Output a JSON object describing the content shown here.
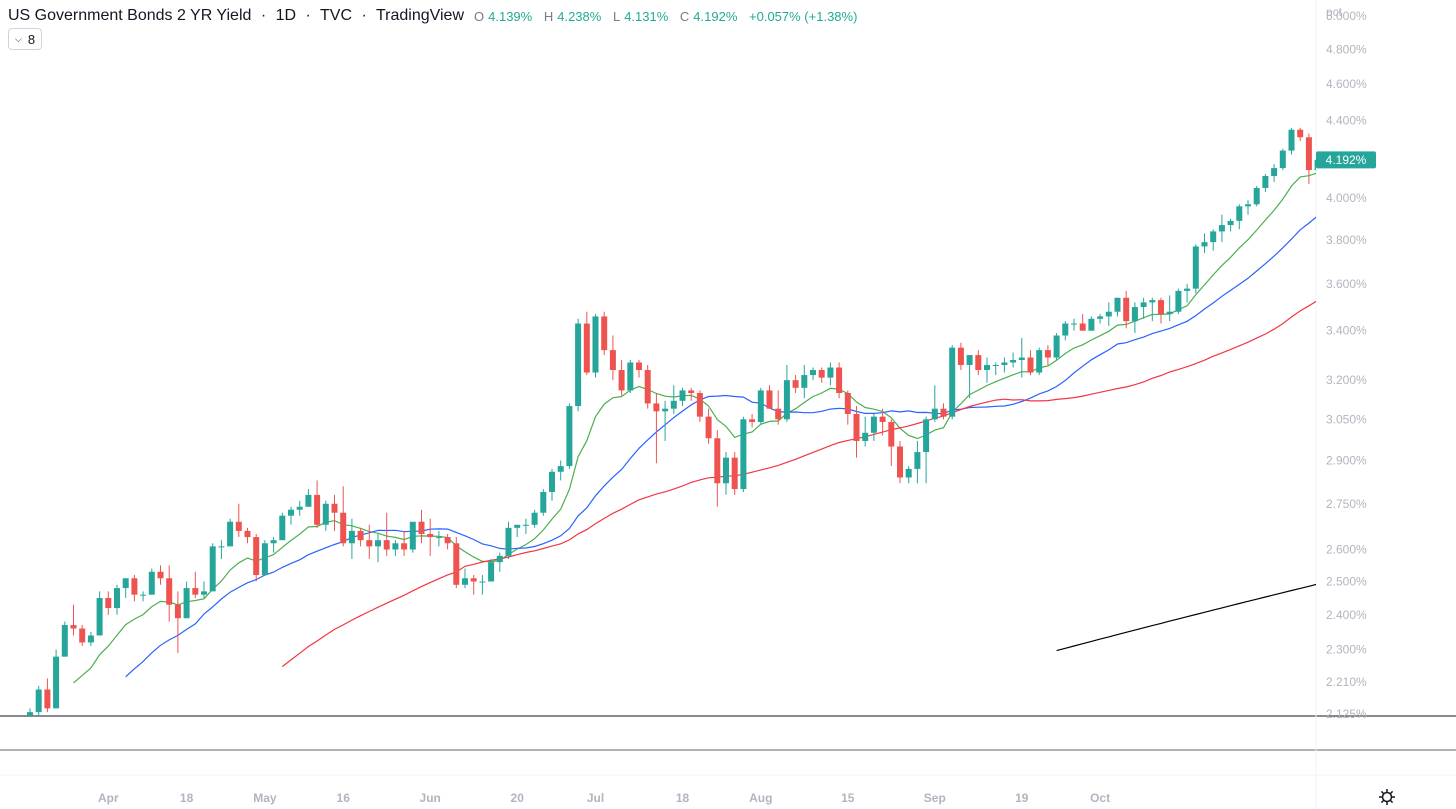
{
  "header": {
    "title": "US Government Bonds 2 YR Yield",
    "interval": "1D",
    "source": "TVC",
    "platform": "TradingView",
    "sep": "·",
    "open_label": "O",
    "open": "4.139%",
    "high_label": "H",
    "high": "4.238%",
    "low_label": "L",
    "low": "4.131%",
    "close_label": "C",
    "close": "4.192%",
    "change": "+0.057% (+1.38%)"
  },
  "indicator_button": {
    "label": "8"
  },
  "colors": {
    "up": "#26a69a",
    "down": "#ef5350",
    "ma_short": "#4caf50",
    "ma_mid": "#2962ff",
    "ma_long": "#f23645",
    "ma_longest": "#000000",
    "price_label_bg": "#26a69a"
  },
  "chart_data": {
    "type": "candlestick",
    "title": "US Government Bonds 2 YR Yield",
    "y_scale": "log",
    "ylim": [
      2.12,
      5.05
    ],
    "y_unit_label": "pct",
    "y_ticks": [
      "5.000%",
      "4.800%",
      "4.600%",
      "4.400%",
      "4.000%",
      "3.800%",
      "3.600%",
      "3.400%",
      "3.200%",
      "3.050%",
      "2.900%",
      "2.750%",
      "2.600%",
      "2.500%",
      "2.400%",
      "2.300%",
      "2.210%",
      "2.125%"
    ],
    "y_tick_values": [
      5.0,
      4.8,
      4.6,
      4.4,
      4.0,
      3.8,
      3.6,
      3.4,
      3.2,
      3.05,
      2.9,
      2.75,
      2.6,
      2.5,
      2.4,
      2.3,
      2.21,
      2.125
    ],
    "x_ticks": [
      "Apr",
      "18",
      "May",
      "16",
      "Jun",
      "20",
      "Jul",
      "18",
      "Aug",
      "15",
      "Sep",
      "19",
      "Oct"
    ],
    "x_tick_bar_index": [
      9,
      18,
      27,
      36,
      46,
      56,
      65,
      75,
      84,
      94,
      104,
      114,
      123
    ],
    "last_price_label": "4.192%",
    "candles": [
      [
        2.12,
        2.14,
        2.11,
        2.13
      ],
      [
        2.13,
        2.2,
        2.12,
        2.19
      ],
      [
        2.19,
        2.22,
        2.13,
        2.14
      ],
      [
        2.14,
        2.3,
        2.14,
        2.28
      ],
      [
        2.28,
        2.38,
        2.28,
        2.37
      ],
      [
        2.37,
        2.43,
        2.34,
        2.36
      ],
      [
        2.36,
        2.37,
        2.31,
        2.32
      ],
      [
        2.32,
        2.35,
        2.31,
        2.34
      ],
      [
        2.34,
        2.47,
        2.34,
        2.45
      ],
      [
        2.45,
        2.47,
        2.4,
        2.42
      ],
      [
        2.42,
        2.49,
        2.4,
        2.48
      ],
      [
        2.48,
        2.51,
        2.45,
        2.51
      ],
      [
        2.51,
        2.52,
        2.44,
        2.46
      ],
      [
        2.46,
        2.47,
        2.44,
        2.46
      ],
      [
        2.46,
        2.54,
        2.46,
        2.53
      ],
      [
        2.53,
        2.55,
        2.49,
        2.51
      ],
      [
        2.51,
        2.55,
        2.38,
        2.43
      ],
      [
        2.43,
        2.47,
        2.29,
        2.39
      ],
      [
        2.39,
        2.5,
        2.39,
        2.48
      ],
      [
        2.48,
        2.53,
        2.45,
        2.46
      ],
      [
        2.46,
        2.5,
        2.45,
        2.47
      ],
      [
        2.47,
        2.62,
        2.47,
        2.61
      ],
      [
        2.61,
        2.63,
        2.57,
        2.61
      ],
      [
        2.61,
        2.7,
        2.61,
        2.69
      ],
      [
        2.69,
        2.75,
        2.64,
        2.66
      ],
      [
        2.66,
        2.67,
        2.62,
        2.64
      ],
      [
        2.64,
        2.65,
        2.5,
        2.52
      ],
      [
        2.52,
        2.63,
        2.52,
        2.62
      ],
      [
        2.62,
        2.64,
        2.59,
        2.63
      ],
      [
        2.63,
        2.72,
        2.63,
        2.71
      ],
      [
        2.71,
        2.74,
        2.68,
        2.73
      ],
      [
        2.73,
        2.76,
        2.71,
        2.74
      ],
      [
        2.74,
        2.8,
        2.74,
        2.78
      ],
      [
        2.78,
        2.83,
        2.67,
        2.68
      ],
      [
        2.68,
        2.76,
        2.66,
        2.75
      ],
      [
        2.75,
        2.78,
        2.66,
        2.72
      ],
      [
        2.72,
        2.81,
        2.61,
        2.62
      ],
      [
        2.62,
        2.7,
        2.57,
        2.66
      ],
      [
        2.66,
        2.67,
        2.61,
        2.63
      ],
      [
        2.63,
        2.68,
        2.57,
        2.61
      ],
      [
        2.61,
        2.65,
        2.56,
        2.63
      ],
      [
        2.63,
        2.72,
        2.58,
        2.6
      ],
      [
        2.6,
        2.63,
        2.58,
        2.62
      ],
      [
        2.62,
        2.66,
        2.58,
        2.6
      ],
      [
        2.6,
        2.68,
        2.59,
        2.69
      ],
      [
        2.69,
        2.73,
        2.62,
        2.65
      ],
      [
        2.65,
        2.7,
        2.58,
        2.64
      ],
      [
        2.64,
        2.66,
        2.61,
        2.64
      ],
      [
        2.64,
        2.65,
        2.6,
        2.62
      ],
      [
        2.62,
        2.64,
        2.48,
        2.49
      ],
      [
        2.49,
        2.54,
        2.48,
        2.51
      ],
      [
        2.51,
        2.52,
        2.46,
        2.5
      ],
      [
        2.5,
        2.52,
        2.46,
        2.5
      ],
      [
        2.5,
        2.57,
        2.5,
        2.56
      ],
      [
        2.56,
        2.59,
        2.53,
        2.58
      ],
      [
        2.58,
        2.69,
        2.57,
        2.67
      ],
      [
        2.67,
        2.68,
        2.64,
        2.68
      ],
      [
        2.68,
        2.7,
        2.65,
        2.68
      ],
      [
        2.68,
        2.73,
        2.67,
        2.72
      ],
      [
        2.72,
        2.8,
        2.71,
        2.79
      ],
      [
        2.79,
        2.87,
        2.76,
        2.86
      ],
      [
        2.86,
        2.9,
        2.83,
        2.88
      ],
      [
        2.88,
        3.11,
        2.87,
        3.1
      ],
      [
        3.1,
        3.45,
        3.08,
        3.43
      ],
      [
        3.43,
        3.48,
        3.22,
        3.23
      ],
      [
        3.23,
        3.47,
        3.21,
        3.46
      ],
      [
        3.46,
        3.48,
        3.3,
        3.32
      ],
      [
        3.32,
        3.38,
        3.2,
        3.24
      ],
      [
        3.24,
        3.28,
        3.14,
        3.16
      ],
      [
        3.16,
        3.28,
        3.15,
        3.27
      ],
      [
        3.27,
        3.28,
        3.21,
        3.24
      ],
      [
        3.24,
        3.26,
        3.09,
        3.11
      ],
      [
        3.11,
        3.15,
        2.89,
        3.08
      ],
      [
        3.08,
        3.12,
        2.97,
        3.09
      ],
      [
        3.09,
        3.18,
        3.07,
        3.12
      ],
      [
        3.12,
        3.17,
        3.1,
        3.16
      ],
      [
        3.16,
        3.17,
        3.12,
        3.15
      ],
      [
        3.15,
        3.16,
        3.04,
        3.06
      ],
      [
        3.06,
        3.09,
        2.96,
        2.98
      ],
      [
        2.98,
        3.01,
        2.74,
        2.82
      ],
      [
        2.82,
        2.93,
        2.78,
        2.91
      ],
      [
        2.91,
        2.93,
        2.78,
        2.8
      ],
      [
        2.8,
        3.06,
        2.79,
        3.05
      ],
      [
        3.05,
        3.07,
        3.02,
        3.04
      ],
      [
        3.04,
        3.17,
        3.03,
        3.16
      ],
      [
        3.16,
        3.18,
        3.09,
        3.09
      ],
      [
        3.09,
        3.16,
        3.03,
        3.05
      ],
      [
        3.05,
        3.26,
        3.04,
        3.2
      ],
      [
        3.2,
        3.22,
        3.15,
        3.17
      ],
      [
        3.17,
        3.26,
        3.13,
        3.22
      ],
      [
        3.22,
        3.25,
        3.2,
        3.24
      ],
      [
        3.24,
        3.25,
        3.19,
        3.21
      ],
      [
        3.21,
        3.27,
        3.18,
        3.25
      ],
      [
        3.25,
        3.27,
        3.13,
        3.15
      ],
      [
        3.15,
        3.16,
        3.03,
        3.07
      ],
      [
        3.07,
        3.1,
        2.91,
        2.97
      ],
      [
        2.97,
        3.06,
        2.95,
        3.0
      ],
      [
        3.0,
        3.07,
        2.97,
        3.06
      ],
      [
        3.06,
        3.09,
        2.99,
        3.04
      ],
      [
        3.04,
        3.05,
        2.88,
        2.95
      ],
      [
        2.95,
        2.97,
        2.82,
        2.84
      ],
      [
        2.84,
        2.88,
        2.82,
        2.87
      ],
      [
        2.87,
        2.97,
        2.82,
        2.93
      ],
      [
        2.93,
        3.06,
        2.82,
        3.05
      ],
      [
        3.05,
        3.18,
        3.04,
        3.09
      ],
      [
        3.09,
        3.11,
        3.05,
        3.06
      ],
      [
        3.06,
        3.34,
        3.05,
        3.33
      ],
      [
        3.33,
        3.35,
        3.24,
        3.26
      ],
      [
        3.26,
        3.3,
        3.13,
        3.3
      ],
      [
        3.3,
        3.32,
        3.22,
        3.24
      ],
      [
        3.24,
        3.29,
        3.19,
        3.26
      ],
      [
        3.26,
        3.27,
        3.22,
        3.26
      ],
      [
        3.26,
        3.29,
        3.23,
        3.27
      ],
      [
        3.27,
        3.31,
        3.25,
        3.28
      ],
      [
        3.28,
        3.37,
        3.21,
        3.29
      ],
      [
        3.29,
        3.32,
        3.22,
        3.23
      ],
      [
        3.23,
        3.33,
        3.22,
        3.32
      ],
      [
        3.32,
        3.34,
        3.26,
        3.29
      ],
      [
        3.29,
        3.39,
        3.28,
        3.38
      ],
      [
        3.38,
        3.44,
        3.36,
        3.43
      ],
      [
        3.43,
        3.45,
        3.4,
        3.43
      ],
      [
        3.43,
        3.47,
        3.4,
        3.4
      ],
      [
        3.4,
        3.46,
        3.4,
        3.45
      ],
      [
        3.45,
        3.47,
        3.43,
        3.46
      ],
      [
        3.46,
        3.52,
        3.42,
        3.48
      ],
      [
        3.48,
        3.54,
        3.46,
        3.54
      ],
      [
        3.54,
        3.57,
        3.41,
        3.44
      ],
      [
        3.44,
        3.52,
        3.39,
        3.5
      ],
      [
        3.5,
        3.54,
        3.45,
        3.52
      ],
      [
        3.52,
        3.54,
        3.44,
        3.53
      ],
      [
        3.53,
        3.54,
        3.43,
        3.47
      ],
      [
        3.47,
        3.55,
        3.44,
        3.48
      ],
      [
        3.48,
        3.58,
        3.47,
        3.57
      ],
      [
        3.57,
        3.6,
        3.52,
        3.58
      ],
      [
        3.58,
        3.78,
        3.56,
        3.77
      ],
      [
        3.77,
        3.83,
        3.74,
        3.79
      ],
      [
        3.79,
        3.85,
        3.75,
        3.84
      ],
      [
        3.84,
        3.92,
        3.79,
        3.87
      ],
      [
        3.87,
        3.9,
        3.84,
        3.89
      ],
      [
        3.89,
        3.97,
        3.85,
        3.96
      ],
      [
        3.96,
        3.99,
        3.92,
        3.97
      ],
      [
        3.97,
        4.06,
        3.96,
        4.05
      ],
      [
        4.05,
        4.12,
        4.03,
        4.11
      ],
      [
        4.11,
        4.17,
        4.08,
        4.15
      ],
      [
        4.15,
        4.25,
        4.14,
        4.24
      ],
      [
        4.24,
        4.36,
        4.22,
        4.35
      ],
      [
        4.35,
        4.36,
        4.29,
        4.31
      ],
      [
        4.31,
        4.33,
        4.07,
        4.14
      ],
      [
        4.139,
        4.238,
        4.131,
        4.192
      ]
    ]
  }
}
